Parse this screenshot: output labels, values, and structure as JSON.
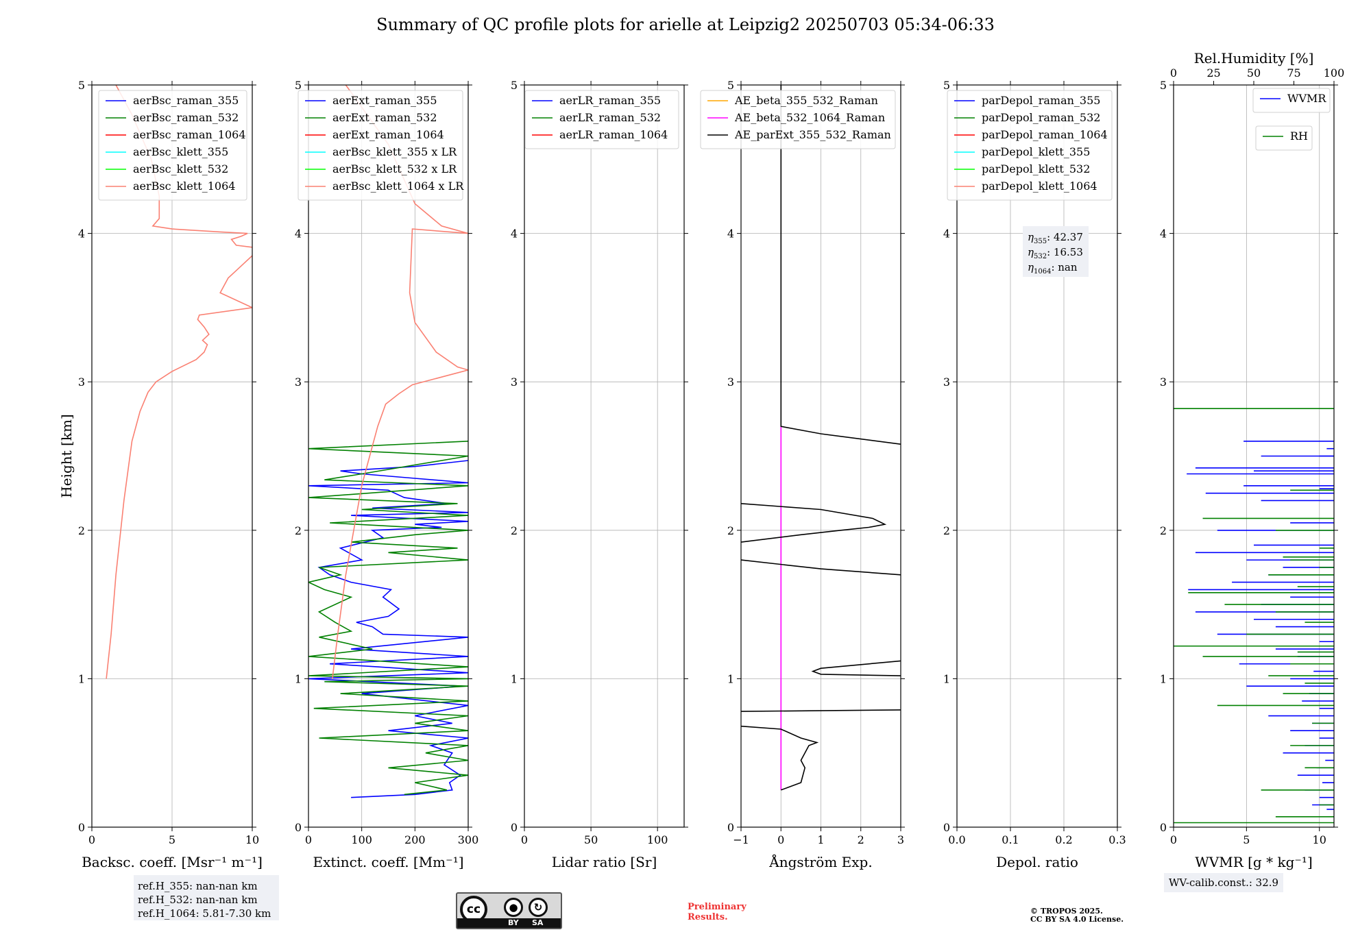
{
  "figure_title": "Summary of QC profile plots for arielle at Leipzig2 20250703 05:34-06:33",
  "footer": {
    "ref_heights": [
      "ref.H_355: nan-nan km",
      "ref.H_532: nan-nan km",
      "ref.H_1064: 5.81-7.30 km"
    ],
    "license_badge": {
      "cc": "cc",
      "by": "BY",
      "sa": "SA"
    },
    "preliminary": [
      "Preliminary",
      "Results."
    ],
    "copyright": [
      "© TROPOS 2025.",
      "CC BY SA 4.0 License."
    ],
    "wv_calib": "WV-calib.const.: 32.9"
  },
  "colors": {
    "blue": "#0000ff",
    "green": "#008000",
    "red": "#ff0000",
    "cyan": "#00ffff",
    "lime": "#00ff00",
    "salmon": "#fa8072",
    "orange": "#ffa500",
    "magenta": "#ff00ff",
    "black": "#000000"
  },
  "chart_data": [
    {
      "type": "line",
      "xlabel": "Backsc. coeff. [Msr⁻¹ m⁻¹]",
      "ylabel": "Height [km]",
      "xlim": [
        0,
        10
      ],
      "ylim": [
        0,
        5
      ],
      "xticks": [
        0,
        5,
        10
      ],
      "yticks": [
        0,
        1,
        2,
        3,
        4,
        5
      ],
      "legend": [
        "aerBsc_raman_355",
        "aerBsc_raman_532",
        "aerBsc_raman_1064",
        "aerBsc_klett_355",
        "aerBsc_klett_532",
        "aerBsc_klett_1064"
      ],
      "legend_colors": [
        "blue",
        "green",
        "red",
        "cyan",
        "lime",
        "salmon"
      ],
      "legend_position": "top-right",
      "series": [
        {
          "name": "aerBsc_klett_1064",
          "color": "salmon",
          "x": [
            0.9,
            1.2,
            1.5,
            2.0,
            2.5,
            3.0,
            3.5,
            4.0,
            5.0,
            6.5,
            7.0,
            7.2,
            6.9,
            7.3,
            7.0,
            6.6,
            6.7,
            10.0,
            8.0,
            8.5,
            9.0,
            9.5,
            10.5,
            9.0,
            8.7,
            9.3,
            9.7,
            8.0,
            5.0,
            3.8,
            4.2,
            4.2,
            4.0,
            3.7,
            2.5,
            1.5
          ],
          "y": [
            1.0,
            1.3,
            1.7,
            2.2,
            2.6,
            2.8,
            2.93,
            3.0,
            3.07,
            3.15,
            3.2,
            3.25,
            3.28,
            3.32,
            3.37,
            3.42,
            3.45,
            3.5,
            3.6,
            3.7,
            3.75,
            3.8,
            3.9,
            3.92,
            3.96,
            3.98,
            4.0,
            4.01,
            4.03,
            4.05,
            4.1,
            4.25,
            4.35,
            4.5,
            4.8,
            5.0
          ]
        }
      ]
    },
    {
      "type": "line",
      "xlabel": "Extinct. coeff. [Mm⁻¹]",
      "xlim": [
        0,
        300
      ],
      "ylim": [
        0,
        5
      ],
      "xticks": [
        0,
        100,
        200,
        300
      ],
      "yticks": [
        0,
        1,
        2,
        3,
        4,
        5
      ],
      "legend": [
        "aerExt_raman_355",
        "aerExt_raman_532",
        "aerExt_raman_1064",
        "aerBsc_klett_355 x LR",
        "aerBsc_klett_532 x LR",
        "aerBsc_klett_1064 x LR"
      ],
      "legend_colors": [
        "blue",
        "green",
        "red",
        "cyan",
        "lime",
        "salmon"
      ],
      "legend_position": "top-right",
      "series": [
        {
          "name": "aerExt_raman_355",
          "color": "blue",
          "x": [
            80,
            200,
            270,
            265,
            285,
            255,
            270,
            230,
            300,
            150,
            270,
            200,
            300,
            100,
            290,
            0,
            300,
            130,
            40,
            300,
            80,
            300,
            140,
            120,
            90,
            150,
            170,
            140,
            155,
            80,
            40,
            20,
            100,
            60,
            140,
            120,
            250,
            200,
            300,
            80,
            300,
            120,
            260,
            180,
            150,
            0,
            300,
            200,
            100,
            60,
            200,
            300
          ],
          "y": [
            0.2,
            0.22,
            0.25,
            0.3,
            0.35,
            0.42,
            0.5,
            0.55,
            0.6,
            0.65,
            0.7,
            0.75,
            0.82,
            0.9,
            0.95,
            1.0,
            1.04,
            1.08,
            1.1,
            1.15,
            1.2,
            1.28,
            1.3,
            1.35,
            1.38,
            1.42,
            1.47,
            1.55,
            1.6,
            1.65,
            1.7,
            1.75,
            1.8,
            1.88,
            1.95,
            2.0,
            2.02,
            2.04,
            2.06,
            2.1,
            2.12,
            2.15,
            2.18,
            2.22,
            2.27,
            2.3,
            2.32,
            2.35,
            2.38,
            2.4,
            2.43,
            2.47
          ]
        },
        {
          "name": "aerExt_raman_532",
          "color": "green",
          "x": [
            180,
            260,
            200,
            300,
            150,
            300,
            220,
            300,
            20,
            300,
            200,
            300,
            10,
            300,
            60,
            300,
            30,
            300,
            0,
            300,
            0,
            120,
            20,
            80,
            50,
            20,
            80,
            30,
            0,
            60,
            20,
            300,
            150,
            280,
            80,
            200,
            300,
            40,
            300,
            100,
            280,
            0,
            300,
            30,
            100,
            300,
            0,
            300
          ],
          "y": [
            0.22,
            0.25,
            0.3,
            0.35,
            0.4,
            0.45,
            0.5,
            0.55,
            0.6,
            0.65,
            0.7,
            0.75,
            0.8,
            0.85,
            0.9,
            0.95,
            0.98,
            1.0,
            1.02,
            1.08,
            1.15,
            1.2,
            1.28,
            1.32,
            1.38,
            1.45,
            1.55,
            1.6,
            1.65,
            1.7,
            1.75,
            1.8,
            1.85,
            1.88,
            1.92,
            1.97,
            2.0,
            2.05,
            2.1,
            2.14,
            2.18,
            2.22,
            2.3,
            2.34,
            2.38,
            2.5,
            2.55,
            2.6
          ]
        },
        {
          "name": "aerBsc_klett_1064 x LR",
          "color": "salmon",
          "x": [
            45,
            55,
            70,
            85,
            100,
            115,
            130,
            145,
            170,
            195,
            300,
            280,
            240,
            200,
            190,
            195,
            300,
            250,
            200,
            150,
            100,
            70
          ],
          "y": [
            1.0,
            1.3,
            1.7,
            2.0,
            2.3,
            2.5,
            2.7,
            2.85,
            2.92,
            2.98,
            3.08,
            3.1,
            3.2,
            3.4,
            3.6,
            4.03,
            4.0,
            4.05,
            4.2,
            4.6,
            4.85,
            5.0
          ]
        }
      ]
    },
    {
      "type": "line",
      "xlabel": "Lidar ratio [Sr]",
      "xlim": [
        0,
        120
      ],
      "ylim": [
        0,
        5
      ],
      "xticks": [
        0,
        50,
        100
      ],
      "yticks": [
        0,
        1,
        2,
        3,
        4,
        5
      ],
      "legend": [
        "aerLR_raman_355",
        "aerLR_raman_532",
        "aerLR_raman_1064"
      ],
      "legend_colors": [
        "blue",
        "green",
        "red"
      ],
      "legend_position": "top-right",
      "series": []
    },
    {
      "type": "line",
      "xlabel": "Ångström Exp.",
      "xlim": [
        -1,
        3
      ],
      "ylim": [
        0,
        5
      ],
      "xticks": [
        -1,
        0,
        1,
        2,
        3
      ],
      "yticks": [
        0,
        1,
        2,
        3,
        4,
        5
      ],
      "legend": [
        "AE_beta_355_532_Raman",
        "AE_beta_532_1064_Raman",
        "AE_parExt_355_532_Raman"
      ],
      "legend_colors": [
        "orange",
        "magenta",
        "black"
      ],
      "legend_position": "top-right",
      "series": [
        {
          "name": "AE_beta_532_1064_Raman",
          "color": "magenta",
          "x": [
            0,
            0
          ],
          "y": [
            0.25,
            2.7
          ]
        },
        {
          "name": "AE_parExt_355_532_Raman",
          "color": "black",
          "x": [
            0,
            0.2,
            0.5,
            0.55,
            0.6,
            0.5,
            0.6,
            0.7,
            0.9,
            0.5,
            0.0,
            -1.0,
            null,
            -1.0,
            3.0,
            null,
            3.0,
            1.0,
            0.8,
            1.0,
            3.0,
            null,
            3.0,
            1.0,
            -1.0,
            null,
            -1.0,
            0.5,
            1.5,
            2.2,
            2.6,
            2.3,
            1.0,
            -1.0,
            null,
            3.0,
            1.0,
            0.0,
            0.0
          ],
          "y": [
            0.25,
            0.27,
            0.3,
            0.35,
            0.4,
            0.45,
            0.5,
            0.55,
            0.57,
            0.6,
            0.66,
            0.68,
            null,
            0.78,
            0.79,
            null,
            1.02,
            1.03,
            1.05,
            1.07,
            1.12,
            null,
            1.7,
            1.74,
            1.8,
            null,
            1.92,
            1.97,
            2.0,
            2.02,
            2.04,
            2.08,
            2.14,
            2.18,
            null,
            2.58,
            2.65,
            2.7,
            5.0
          ]
        }
      ]
    },
    {
      "type": "line",
      "xlabel": "Depol. ratio",
      "xlim": [
        0,
        0.3
      ],
      "ylim": [
        0,
        5
      ],
      "xticks": [
        0.0,
        0.1,
        0.2,
        0.3
      ],
      "xtick_labels": [
        "0.0",
        "0.1",
        "0.2",
        "0.3"
      ],
      "yticks": [
        0,
        1,
        2,
        3,
        4,
        5
      ],
      "legend": [
        "parDepol_raman_355",
        "parDepol_raman_532",
        "parDepol_raman_1064",
        "parDepol_klett_355",
        "parDepol_klett_532",
        "parDepol_klett_1064"
      ],
      "legend_colors": [
        "blue",
        "green",
        "red",
        "cyan",
        "lime",
        "salmon"
      ],
      "legend_position": "top-right",
      "annotation": [
        {
          "sym": "η",
          "sub": "355",
          "val": ": 42.37"
        },
        {
          "sym": "η",
          "sub": "532",
          "val": ": 16.53"
        },
        {
          "sym": "η",
          "sub": "1064",
          "val": ": nan"
        }
      ],
      "series": []
    },
    {
      "type": "line",
      "xlabel": "WVMR [g * kg⁻¹]",
      "top_xlabel": "Rel.Humidity [%]",
      "xlim": [
        0,
        11
      ],
      "ylim": [
        0,
        5
      ],
      "xticks": [
        0,
        5,
        10
      ],
      "top_xlim": [
        0,
        100
      ],
      "top_xticks": [
        0,
        25,
        50,
        75,
        100
      ],
      "yticks": [
        0,
        1,
        2,
        3,
        4,
        5
      ],
      "legend": [
        "WVMR"
      ],
      "legend_colors": [
        "blue"
      ],
      "legend2": [
        "RH"
      ],
      "legend2_colors": [
        "green"
      ],
      "legend_position": "top-right",
      "series": [
        {
          "name": "WVMR",
          "color": "blue",
          "style": "spikes",
          "base": 11,
          "x": [
            10.5,
            9.5,
            10.0,
            9.0,
            10.2,
            8.5,
            9.8,
            10.4,
            7.5,
            9.0,
            10.0,
            8.0,
            9.5,
            6.5,
            10.0,
            8.8,
            9.3,
            5.0,
            8.0,
            9.6,
            4.5,
            8.5,
            7.0,
            9.0,
            10.0,
            3.0,
            7.0,
            5.5,
            1.5,
            6.0,
            8.0,
            1.0,
            4.0,
            6.5,
            7.5,
            5.0,
            1.5,
            5.5,
            3.0,
            8.0,
            6.0,
            2.2,
            10.0,
            4.8,
            0.9,
            5.5,
            1.5,
            6.0,
            10.5,
            10.0,
            4.8
          ],
          "y": [
            0.12,
            0.15,
            0.2,
            0.25,
            0.3,
            0.35,
            0.4,
            0.45,
            0.5,
            0.55,
            0.6,
            0.65,
            0.7,
            0.75,
            0.8,
            0.85,
            0.9,
            0.95,
            1.0,
            1.05,
            1.1,
            1.15,
            1.2,
            1.22,
            1.25,
            1.3,
            1.35,
            1.4,
            1.45,
            1.5,
            1.55,
            1.6,
            1.65,
            1.7,
            1.75,
            1.8,
            1.85,
            1.9,
            2.0,
            2.05,
            2.2,
            2.25,
            2.28,
            2.3,
            2.38,
            2.4,
            2.42,
            2.5,
            2.55,
            2.5,
            2.6
          ]
        },
        {
          "name": "RH",
          "color": "green",
          "style": "spikes",
          "base": 11,
          "x": [
            0.0,
            7.0,
            10.0,
            6.0,
            9.0,
            8.0,
            9.5,
            3.0,
            7.5,
            9.0,
            6.5,
            8.0,
            2.0,
            8.5,
            0.0,
            5.0,
            9.0,
            7.0,
            3.5,
            1.0,
            8.5,
            6.5,
            10.0,
            8.0,
            7.5,
            10.0,
            7.0,
            2.0,
            8.0,
            0.0
          ],
          "y": [
            0.03,
            0.07,
            0.15,
            0.25,
            0.4,
            0.55,
            0.7,
            0.82,
            0.9,
            0.97,
            1.02,
            1.1,
            1.15,
            1.18,
            1.22,
            1.3,
            1.38,
            1.45,
            1.5,
            1.58,
            1.62,
            1.7,
            1.75,
            1.8,
            1.82,
            1.88,
            2.0,
            2.08,
            2.27,
            2.82
          ]
        }
      ]
    }
  ]
}
